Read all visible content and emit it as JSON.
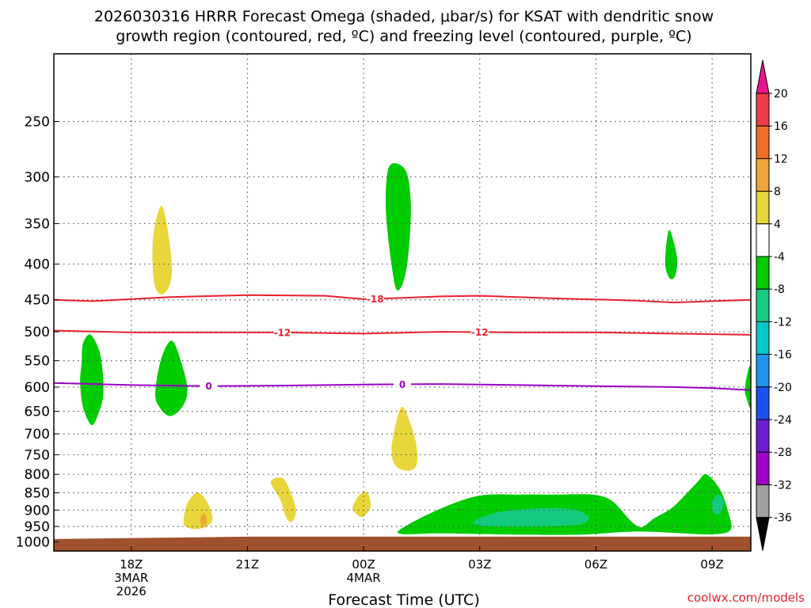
{
  "chart_data": {
    "type": "contour",
    "title": "2026030316 HRRR Forecast Omega (shaded, μbar/s) for KSAT with dendritic snow",
    "subtitle": "growth region (contoured, red, ºC) and freezing level (contoured, purple, ºC)",
    "xlabel": "Forecast Time (UTC)",
    "ylabel": "",
    "credit": "coolwx.com/models",
    "x_ticks": [
      {
        "hour": 2,
        "label": "18Z",
        "label2": "3MAR",
        "label3": "2026"
      },
      {
        "hour": 5,
        "label": "21Z",
        "label2": "",
        "label3": ""
      },
      {
        "hour": 8,
        "label": "00Z",
        "label2": "4MAR",
        "label3": ""
      },
      {
        "hour": 11,
        "label": "03Z",
        "label2": "",
        "label3": ""
      },
      {
        "hour": 14,
        "label": "06Z",
        "label2": "",
        "label3": ""
      },
      {
        "hour": 17,
        "label": "09Z",
        "label2": "",
        "label3": ""
      }
    ],
    "x_range_hours": [
      0,
      18
    ],
    "y_ticks": [
      250,
      300,
      350,
      400,
      450,
      500,
      550,
      600,
      650,
      700,
      750,
      800,
      850,
      900,
      950,
      1000
    ],
    "y_range_hpa": [
      200,
      1030
    ],
    "y_scale": "log-pressure",
    "grid": true,
    "surface_color": "#a0522d",
    "surface_pressure": 985,
    "colorbar": {
      "labels": [
        "20",
        "16",
        "12",
        "8",
        "4",
        "-4",
        "-8",
        "-12",
        "-16",
        "-20",
        "-24",
        "-28",
        "-32",
        "-36"
      ],
      "colors": [
        "#f03c46",
        "#f07028",
        "#eea63a",
        "#e8d63a",
        "#ffffff",
        "#00cc00",
        "#14cc80",
        "#00c8c8",
        "#1e96f0",
        "#1e50f0",
        "#6e1ed2",
        "#a000c8",
        "#a0a0a0"
      ],
      "top_arrow_color": "#e8168c",
      "bottom_arrow_color": "#000000"
    },
    "contours": [
      {
        "label": "-18",
        "color": "#e8202c",
        "label_hours": [
          8.3
        ],
        "points": [
          [
            0,
            450
          ],
          [
            1,
            452
          ],
          [
            3,
            446
          ],
          [
            5,
            443
          ],
          [
            7,
            444
          ],
          [
            8,
            449
          ],
          [
            9,
            447
          ],
          [
            10,
            445
          ],
          [
            11,
            444
          ],
          [
            13,
            448
          ],
          [
            15,
            451
          ],
          [
            16,
            454
          ],
          [
            17,
            452
          ],
          [
            18,
            450
          ]
        ]
      },
      {
        "label": "-12",
        "color": "#e8202c",
        "label_hours": [
          5.9,
          11
        ],
        "points": [
          [
            0,
            498
          ],
          [
            2,
            501
          ],
          [
            4,
            501
          ],
          [
            6,
            501
          ],
          [
            8,
            503
          ],
          [
            10,
            500
          ],
          [
            12,
            501
          ],
          [
            14,
            501
          ],
          [
            16,
            503
          ],
          [
            18,
            505
          ]
        ]
      },
      {
        "label": "0",
        "color": "#9a00c8",
        "label_hours": [
          4,
          9
        ],
        "points": [
          [
            0,
            592
          ],
          [
            2,
            596
          ],
          [
            4,
            598
          ],
          [
            6,
            597
          ],
          [
            8,
            595
          ],
          [
            10,
            594
          ],
          [
            12,
            596
          ],
          [
            14,
            598
          ],
          [
            16,
            600
          ],
          [
            17,
            602
          ],
          [
            18,
            606
          ]
        ]
      }
    ],
    "omega_regions": [
      {
        "value_bin": "-4",
        "points": [
          [
            0.72,
            551
          ],
          [
            0.75,
            520
          ],
          [
            0.95,
            505
          ],
          [
            1.2,
            540
          ],
          [
            1.28,
            610
          ],
          [
            1.15,
            655
          ],
          [
            0.97,
            680
          ],
          [
            0.75,
            640
          ],
          [
            0.68,
            590
          ]
        ]
      },
      {
        "value_bin": "-4",
        "points": [
          [
            2.62,
            610
          ],
          [
            2.78,
            545
          ],
          [
            3.05,
            515
          ],
          [
            3.3,
            555
          ],
          [
            3.45,
            605
          ],
          [
            3.32,
            640
          ],
          [
            3.0,
            660
          ],
          [
            2.72,
            640
          ]
        ]
      },
      {
        "value_bin": "4",
        "points": [
          [
            2.55,
            400
          ],
          [
            2.58,
            360
          ],
          [
            2.78,
            330
          ],
          [
            2.95,
            360
          ],
          [
            3.05,
            405
          ],
          [
            2.98,
            430
          ],
          [
            2.8,
            442
          ],
          [
            2.62,
            432
          ]
        ]
      },
      {
        "value_bin": "-4",
        "points": [
          [
            8.6,
            300
          ],
          [
            8.75,
            287
          ],
          [
            9.1,
            295
          ],
          [
            9.22,
            330
          ],
          [
            9.15,
            390
          ],
          [
            9.02,
            425
          ],
          [
            8.85,
            435
          ],
          [
            8.72,
            400
          ],
          [
            8.58,
            340
          ]
        ]
      },
      {
        "value_bin": "4",
        "points": [
          [
            8.72,
            740
          ],
          [
            8.85,
            670
          ],
          [
            9.0,
            640
          ],
          [
            9.18,
            670
          ],
          [
            9.35,
            720
          ],
          [
            9.38,
            770
          ],
          [
            9.2,
            790
          ],
          [
            8.85,
            780
          ]
        ]
      },
      {
        "value_bin": "-4",
        "points": [
          [
            15.8,
            385
          ],
          [
            15.88,
            358
          ],
          [
            16.0,
            370
          ],
          [
            16.1,
            395
          ],
          [
            16.05,
            415
          ],
          [
            15.92,
            420
          ],
          [
            15.8,
            405
          ]
        ]
      },
      {
        "value_bin": "-4",
        "points": [
          [
            17.85,
            600
          ],
          [
            17.98,
            560
          ],
          [
            18.0,
            640
          ],
          [
            17.88,
            620
          ]
        ]
      },
      {
        "value_bin": "4",
        "points": [
          [
            3.35,
            930
          ],
          [
            3.45,
            880
          ],
          [
            3.7,
            850
          ],
          [
            3.95,
            875
          ],
          [
            4.1,
            925
          ],
          [
            3.95,
            950
          ],
          [
            3.65,
            958
          ],
          [
            3.4,
            950
          ]
        ]
      },
      {
        "value_bin": "4",
        "points": [
          [
            5.6,
            820
          ],
          [
            5.9,
            810
          ],
          [
            6.1,
            845
          ],
          [
            6.25,
            900
          ],
          [
            6.15,
            935
          ],
          [
            6.0,
            922
          ],
          [
            5.85,
            870
          ]
        ]
      },
      {
        "value_bin": "4",
        "points": [
          [
            7.72,
            890
          ],
          [
            7.9,
            855
          ],
          [
            8.1,
            850
          ],
          [
            8.18,
            890
          ],
          [
            7.98,
            920
          ],
          [
            7.78,
            908
          ]
        ]
      },
      {
        "value_bin": "8",
        "points": [
          [
            3.82,
            915
          ],
          [
            3.9,
            912
          ],
          [
            3.95,
            930
          ],
          [
            3.9,
            948
          ],
          [
            3.82,
            944
          ],
          [
            3.78,
            930
          ]
        ]
      },
      {
        "value_bin": "-4",
        "points": [
          [
            9.0,
            955
          ],
          [
            10.0,
            895
          ],
          [
            11.0,
            858
          ],
          [
            12.0,
            855
          ],
          [
            13.0,
            855
          ],
          [
            13.9,
            855
          ],
          [
            14.4,
            872
          ],
          [
            14.8,
            920
          ],
          [
            15.0,
            943
          ],
          [
            15.2,
            952
          ],
          [
            15.5,
            925
          ],
          [
            16.0,
            890
          ],
          [
            16.6,
            823
          ],
          [
            16.85,
            800
          ],
          [
            17.2,
            840
          ],
          [
            17.4,
            900
          ],
          [
            17.48,
            960
          ],
          [
            17.0,
            975
          ],
          [
            16.0,
            970
          ],
          [
            15.2,
            966
          ],
          [
            14.6,
            968
          ],
          [
            13.6,
            976
          ],
          [
            12.0,
            976
          ],
          [
            10.0,
            972
          ],
          [
            9.0,
            974
          ]
        ]
      },
      {
        "value_bin": "-8",
        "points": [
          [
            10.9,
            930
          ],
          [
            11.5,
            906
          ],
          [
            12.5,
            895
          ],
          [
            13.4,
            898
          ],
          [
            13.8,
            920
          ],
          [
            13.6,
            943
          ],
          [
            12.6,
            950
          ],
          [
            11.4,
            950
          ],
          [
            10.9,
            944
          ]
        ]
      },
      {
        "value_bin": "-8",
        "points": [
          [
            17.0,
            880
          ],
          [
            17.15,
            855
          ],
          [
            17.3,
            875
          ],
          [
            17.2,
            910
          ],
          [
            17.05,
            908
          ]
        ]
      }
    ]
  }
}
